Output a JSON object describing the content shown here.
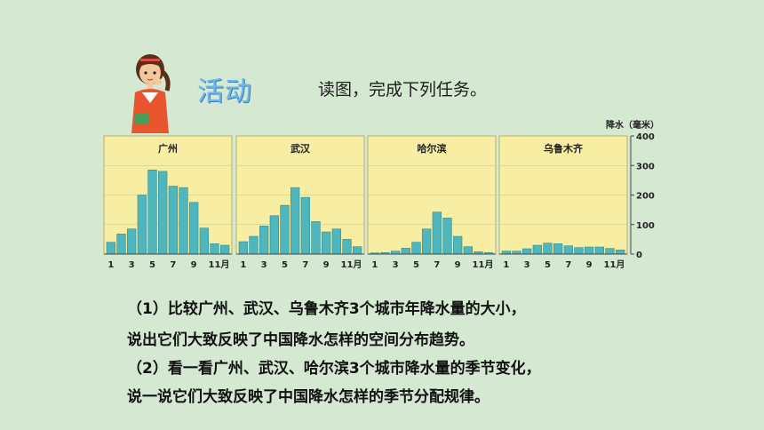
{
  "activity_title": "活动",
  "instruction": "读图，完成下列任务。",
  "y_axis_label": "降水（毫米）",
  "tasks": {
    "task1_line1": "（1）比较广州、武汉、乌鲁木齐3个城市年降水量的大小，",
    "task1_line2": "说出它们大致反映了中国降水怎样的空间分布趋势。",
    "task2_line1": "（2）看一看广州、武汉、哈尔滨3个城市降水量的季节变化，",
    "task2_line2": "说一说它们大致反映了中国降水怎样的季节分配规律。"
  },
  "colors": {
    "panel_bg": "#f7eea3",
    "bar": "#4fb6bd",
    "bar_edge": "#2c8e95",
    "axis": "#444444"
  },
  "chart_data": [
    {
      "type": "bar",
      "title": "广州",
      "categories": [
        "1",
        "2",
        "3",
        "4",
        "5",
        "6",
        "7",
        "8",
        "9",
        "10",
        "11",
        "12"
      ],
      "x_tick_labels": [
        "1",
        "3",
        "5",
        "7",
        "9",
        "11月"
      ],
      "values": [
        40,
        68,
        85,
        200,
        285,
        280,
        230,
        225,
        175,
        88,
        35,
        30
      ],
      "ylim": [
        0,
        400
      ]
    },
    {
      "type": "bar",
      "title": "武汉",
      "categories": [
        "1",
        "2",
        "3",
        "4",
        "5",
        "6",
        "7",
        "8",
        "9",
        "10",
        "11",
        "12"
      ],
      "x_tick_labels": [
        "1",
        "3",
        "5",
        "7",
        "9",
        "11月"
      ],
      "values": [
        42,
        60,
        95,
        130,
        165,
        225,
        192,
        110,
        75,
        85,
        50,
        25
      ],
      "ylim": [
        0,
        400
      ]
    },
    {
      "type": "bar",
      "title": "哈尔滨",
      "categories": [
        "1",
        "2",
        "3",
        "4",
        "5",
        "6",
        "7",
        "8",
        "9",
        "10",
        "11",
        "12"
      ],
      "x_tick_labels": [
        "1",
        "3",
        "5",
        "7",
        "9",
        "11月"
      ],
      "values": [
        4,
        5,
        10,
        20,
        40,
        85,
        142,
        122,
        60,
        25,
        8,
        5
      ],
      "ylim": [
        0,
        400
      ]
    },
    {
      "type": "bar",
      "title": "乌鲁木齐",
      "categories": [
        "1",
        "2",
        "3",
        "4",
        "5",
        "6",
        "7",
        "8",
        "9",
        "10",
        "11",
        "12"
      ],
      "x_tick_labels": [
        "1",
        "3",
        "5",
        "7",
        "9",
        "11月"
      ],
      "values": [
        10,
        10,
        18,
        30,
        37,
        35,
        28,
        22,
        24,
        24,
        19,
        14
      ],
      "ylim": [
        0,
        400
      ],
      "y_ticks": [
        0,
        100,
        200,
        300,
        400
      ]
    }
  ]
}
